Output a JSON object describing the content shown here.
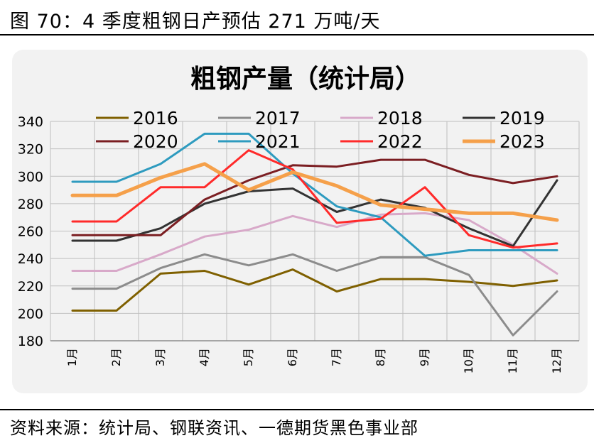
{
  "figure": {
    "title": "图 70：4 季度粗钢日产预估 271 万吨/天",
    "source": "资料来源：统计局、钢联资讯、一德期货黑色事业部"
  },
  "chart_data": {
    "type": "line",
    "title": "粗钢产量（统计局）",
    "xlabel": "",
    "ylabel": "",
    "ylim": [
      180,
      340
    ],
    "yticks": [
      180,
      200,
      220,
      240,
      260,
      280,
      300,
      320,
      340
    ],
    "grid": true,
    "legend_position": "top",
    "categories": [
      "1月",
      "2月",
      "3月",
      "4月",
      "5月",
      "6月",
      "7月",
      "8月",
      "9月",
      "10月",
      "11月",
      "12月"
    ],
    "series": [
      {
        "name": "2016",
        "color": "#7f6000",
        "width": 3,
        "values": [
          202,
          202,
          229,
          231,
          221,
          232,
          216,
          225,
          225,
          223,
          220,
          224
        ]
      },
      {
        "name": "2017",
        "color": "#8c8c8c",
        "width": 3,
        "values": [
          218,
          218,
          233,
          243,
          235,
          243,
          231,
          241,
          241,
          228,
          184,
          216
        ]
      },
      {
        "name": "2018",
        "color": "#d8a9c9",
        "width": 3,
        "values": [
          231,
          231,
          243,
          256,
          261,
          271,
          263,
          272,
          273,
          268,
          250,
          229
        ]
      },
      {
        "name": "2019",
        "color": "#333333",
        "width": 3,
        "values": [
          253,
          253,
          262,
          280,
          289,
          291,
          274,
          283,
          277,
          262,
          249,
          297
        ]
      },
      {
        "name": "2020",
        "color": "#7b1e22",
        "width": 3,
        "values": [
          257,
          257,
          257,
          283,
          297,
          308,
          307,
          312,
          312,
          301,
          295,
          300
        ]
      },
      {
        "name": "2021",
        "color": "#2e9bbf",
        "width": 3,
        "values": [
          296,
          296,
          309,
          331,
          331,
          302,
          278,
          270,
          242,
          246,
          246,
          246
        ]
      },
      {
        "name": "2022",
        "color": "#ff2a2a",
        "width": 3,
        "values": [
          267,
          267,
          292,
          292,
          319,
          305,
          266,
          269,
          292,
          257,
          248,
          251
        ]
      },
      {
        "name": "2023",
        "color": "#f5a04a",
        "width": 5,
        "values": [
          286,
          286,
          299,
          309,
          290,
          303,
          293,
          279,
          276,
          273,
          273,
          268
        ]
      }
    ]
  }
}
